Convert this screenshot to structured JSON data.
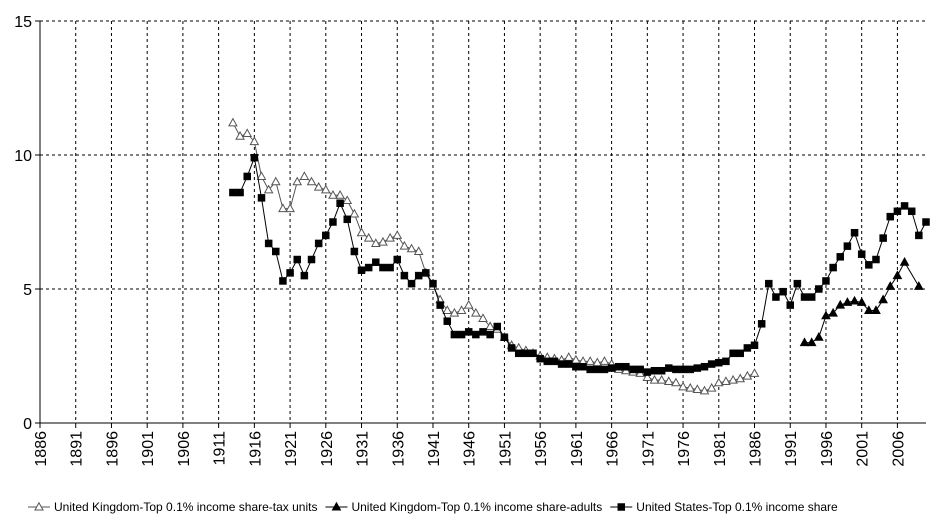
{
  "chart_data": {
    "type": "line",
    "title": "",
    "xlabel": "",
    "ylabel": "",
    "xlim": [
      1886,
      2010
    ],
    "ylim": [
      0,
      15
    ],
    "y_ticks": [
      0,
      5,
      10,
      15
    ],
    "x_ticks": [
      1886,
      1891,
      1896,
      1901,
      1906,
      1911,
      1916,
      1921,
      1926,
      1931,
      1936,
      1941,
      1946,
      1951,
      1956,
      1961,
      1966,
      1971,
      1976,
      1981,
      1986,
      1991,
      1996,
      2001,
      2006
    ],
    "grid": true,
    "legend_position": "bottom",
    "series": [
      {
        "name": "United Kingdom-Top 0.1% income share-tax units",
        "marker": "open-triangle",
        "x": [
          1913,
          1914,
          1915,
          1916,
          1917,
          1918,
          1919,
          1920,
          1921,
          1922,
          1923,
          1924,
          1925,
          1926,
          1927,
          1928,
          1929,
          1930,
          1931,
          1932,
          1933,
          1934,
          1935,
          1936,
          1937,
          1938,
          1939,
          1940,
          1941,
          1942,
          1943,
          1944,
          1945,
          1946,
          1947,
          1948,
          1949,
          1950,
          1951,
          1952,
          1953,
          1954,
          1955,
          1956,
          1957,
          1958,
          1959,
          1960,
          1961,
          1962,
          1963,
          1964,
          1965,
          1966,
          1967,
          1968,
          1969,
          1970,
          1971,
          1972,
          1973,
          1974,
          1975,
          1976,
          1977,
          1978,
          1979,
          1980,
          1981,
          1982,
          1983,
          1984,
          1985,
          1986
        ],
        "values": [
          11.2,
          10.7,
          10.8,
          10.5,
          9.2,
          8.7,
          9.0,
          8.0,
          8.0,
          9.0,
          9.2,
          9.0,
          8.8,
          8.7,
          8.5,
          8.5,
          8.3,
          7.8,
          7.1,
          6.9,
          6.7,
          6.75,
          6.9,
          7.0,
          6.6,
          6.5,
          6.4,
          5.6,
          5.1,
          4.6,
          4.2,
          4.1,
          4.2,
          4.4,
          4.1,
          3.9,
          3.6,
          3.5,
          3.2,
          2.9,
          2.8,
          2.7,
          2.6,
          2.5,
          2.45,
          2.4,
          2.35,
          2.45,
          2.35,
          2.3,
          2.3,
          2.25,
          2.3,
          2.2,
          2.0,
          1.95,
          1.9,
          1.85,
          1.7,
          1.6,
          1.6,
          1.55,
          1.5,
          1.35,
          1.3,
          1.25,
          1.2,
          1.3,
          1.5,
          1.55,
          1.6,
          1.65,
          1.75,
          1.85
        ]
      },
      {
        "name": "United Kingdom-Top 0.1% income share-adults",
        "marker": "filled-triangle",
        "x": [
          1993,
          1994,
          1995,
          1996,
          1997,
          1998,
          1999,
          2000,
          2001,
          2002,
          2003,
          2004,
          2005,
          2006,
          2007,
          2009
        ],
        "values": [
          3.0,
          3.0,
          3.2,
          4.0,
          4.1,
          4.4,
          4.5,
          4.55,
          4.5,
          4.2,
          4.2,
          4.6,
          5.1,
          5.5,
          6.0,
          5.1
        ]
      },
      {
        "name": "United States-Top 0.1% income share",
        "marker": "filled-square",
        "x": [
          1913,
          1914,
          1915,
          1916,
          1917,
          1918,
          1919,
          1920,
          1921,
          1922,
          1923,
          1924,
          1925,
          1926,
          1927,
          1928,
          1929,
          1930,
          1931,
          1932,
          1933,
          1934,
          1935,
          1936,
          1937,
          1938,
          1939,
          1940,
          1941,
          1942,
          1943,
          1944,
          1945,
          1946,
          1947,
          1948,
          1949,
          1950,
          1951,
          1952,
          1953,
          1954,
          1955,
          1956,
          1957,
          1958,
          1959,
          1960,
          1961,
          1962,
          1963,
          1964,
          1965,
          1966,
          1967,
          1968,
          1969,
          1970,
          1971,
          1972,
          1973,
          1974,
          1975,
          1976,
          1977,
          1978,
          1979,
          1980,
          1981,
          1982,
          1983,
          1984,
          1985,
          1986,
          1987,
          1988,
          1989,
          1990,
          1991,
          1992,
          1993,
          1994,
          1995,
          1996,
          1997,
          1998,
          1999,
          2000,
          2001,
          2002,
          2003,
          2004,
          2005,
          2006,
          2007,
          2008,
          2009,
          2010
        ],
        "values": [
          8.6,
          8.6,
          9.2,
          9.9,
          8.4,
          6.7,
          6.4,
          5.3,
          5.6,
          6.1,
          5.5,
          6.1,
          6.7,
          7.0,
          7.5,
          8.2,
          7.6,
          6.4,
          5.7,
          5.8,
          6.0,
          5.8,
          5.8,
          6.1,
          5.5,
          5.2,
          5.5,
          5.6,
          5.2,
          4.4,
          3.8,
          3.3,
          3.3,
          3.4,
          3.3,
          3.4,
          3.3,
          3.6,
          3.2,
          2.8,
          2.6,
          2.6,
          2.6,
          2.4,
          2.3,
          2.3,
          2.2,
          2.2,
          2.1,
          2.1,
          2.0,
          2.0,
          2.0,
          2.05,
          2.1,
          2.1,
          2.0,
          2.0,
          1.9,
          1.95,
          1.95,
          2.05,
          2.0,
          2.0,
          2.0,
          2.05,
          2.1,
          2.2,
          2.25,
          2.3,
          2.6,
          2.6,
          2.8,
          2.9,
          3.7,
          5.2,
          4.7,
          4.9,
          4.4,
          5.2,
          4.7,
          4.7,
          5.0,
          5.3,
          5.8,
          6.2,
          6.6,
          7.1,
          6.3,
          5.9,
          6.1,
          6.9,
          7.7,
          7.9,
          8.1,
          7.9,
          7.0,
          7.5
        ]
      }
    ]
  }
}
